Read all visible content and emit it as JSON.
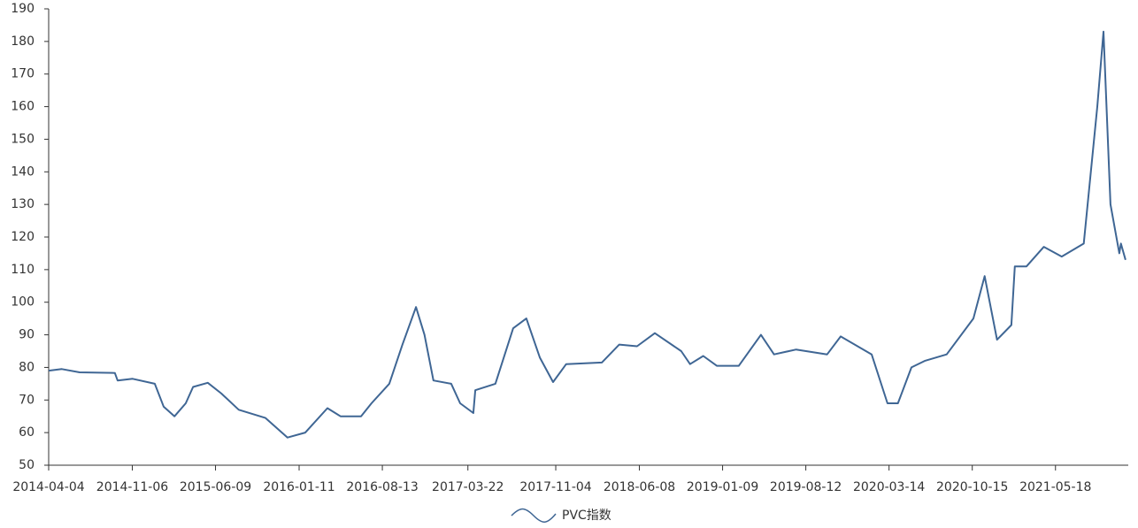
{
  "chart_data": {
    "type": "line",
    "x": [
      "2014-04-04",
      "2014-05-08",
      "2014-06-23",
      "2014-09-22",
      "2014-09-29",
      "2014-11-07",
      "2015-01-03",
      "2015-01-26",
      "2015-02-23",
      "2015-03-24",
      "2015-04-12",
      "2015-05-20",
      "2015-06-24",
      "2015-08-08",
      "2015-10-16",
      "2015-12-12",
      "2016-01-27",
      "2016-03-24",
      "2016-04-27",
      "2016-06-19",
      "2016-07-16",
      "2016-08-31",
      "2016-10-04",
      "2016-11-08",
      "2016-11-30",
      "2016-12-23",
      "2017-02-07",
      "2017-03-02",
      "2017-04-05",
      "2017-04-10",
      "2017-06-01",
      "2017-07-17",
      "2017-08-20",
      "2017-09-24",
      "2017-10-28",
      "2017-12-01",
      "2018-03-03",
      "2018-04-17",
      "2018-06-02",
      "2018-07-18",
      "2018-09-24",
      "2018-10-17",
      "2018-11-20",
      "2018-12-25",
      "2019-02-20",
      "2019-04-18",
      "2019-05-22",
      "2019-07-18",
      "2019-10-06",
      "2019-11-10",
      "2020-01-29",
      "2020-03-10",
      "2020-04-06",
      "2020-05-11",
      "2020-06-14",
      "2020-08-10",
      "2020-10-18",
      "2020-11-16",
      "2020-12-18",
      "2021-01-24",
      "2021-02-02",
      "2021-03-04",
      "2021-04-18",
      "2021-06-03",
      "2021-07-30",
      "2021-09-03",
      "2021-09-19",
      "2021-10-07",
      "2021-10-30",
      "2021-11-03",
      "2021-11-15"
    ],
    "series": [
      {
        "name": "PVC指数",
        "color": "#3f6694",
        "values": [
          79,
          79.5,
          78.5,
          78.3,
          76,
          76.5,
          75,
          68,
          65,
          69,
          74,
          75.3,
          72,
          67,
          64.5,
          58.5,
          60,
          67.5,
          65,
          65,
          69,
          75,
          87,
          98.5,
          90,
          76,
          75,
          69,
          66,
          73,
          75,
          92,
          95,
          83,
          75.5,
          81,
          81.5,
          87,
          86.5,
          90.5,
          85,
          81,
          83.5,
          80.5,
          80.5,
          90,
          84,
          85.5,
          84,
          89.5,
          84,
          69,
          69,
          80,
          82,
          84,
          95,
          108,
          88.5,
          93,
          111,
          111,
          117,
          114,
          118,
          160,
          183,
          130,
          115,
          118,
          113
        ]
      }
    ],
    "xlim": [
      "2014-04-04",
      "2021-11-22"
    ],
    "xticks": [
      "2014-04-04",
      "2014-11-06",
      "2015-06-09",
      "2016-01-11",
      "2016-08-13",
      "2017-03-22",
      "2017-11-04",
      "2018-06-08",
      "2019-01-09",
      "2019-08-12",
      "2020-03-14",
      "2020-10-15",
      "2021-05-18"
    ],
    "ylim": [
      50,
      190
    ],
    "yticks": [
      50,
      60,
      70,
      80,
      90,
      100,
      110,
      120,
      130,
      140,
      150,
      160,
      170,
      180,
      190
    ],
    "legend": "bottom"
  }
}
